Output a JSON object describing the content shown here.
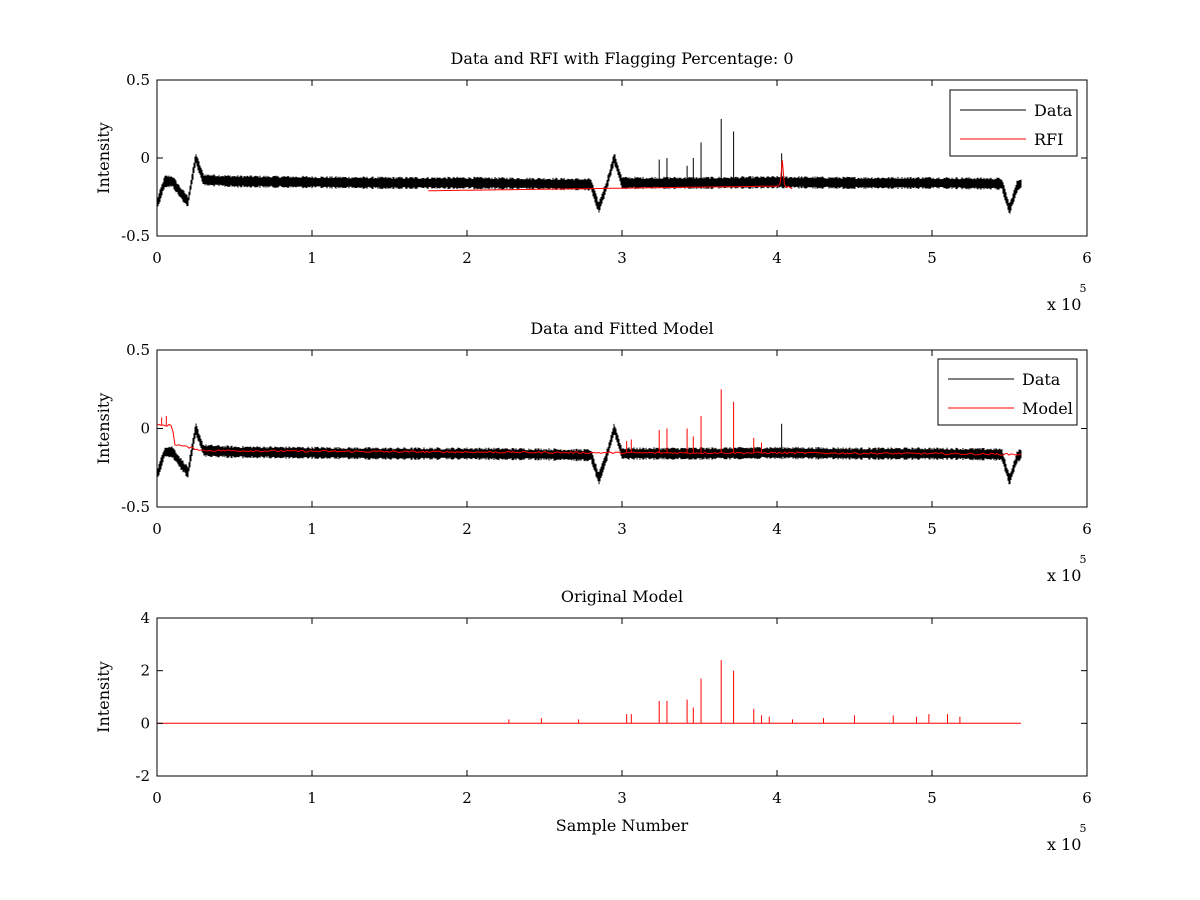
{
  "chart_data": [
    {
      "type": "line",
      "title": "Data and RFI with Flagging Percentage: 0",
      "xlabel": "",
      "ylabel": "Intensity",
      "xlim": [
        0,
        600000
      ],
      "ylim": [
        -0.5,
        0.5
      ],
      "xticks": [
        0,
        1,
        2,
        3,
        4,
        5,
        6
      ],
      "yticks": [
        "-0.5",
        "0",
        "0.5"
      ],
      "x_multiplier": "x 10",
      "x_exponent": "5",
      "legend_position": "top-right",
      "series": [
        {
          "name": "Data",
          "color": "#000000",
          "x": [
            0,
            5000,
            10000,
            15000,
            20000,
            25000,
            30000,
            50000,
            100000,
            150000,
            200000,
            250000,
            280000,
            285000,
            290000,
            295000,
            300000,
            350000,
            400000,
            450000,
            500000,
            545000,
            550000,
            555000,
            558000
          ],
          "y": [
            -0.3,
            -0.15,
            -0.15,
            -0.22,
            -0.28,
            0.0,
            -0.14,
            -0.15,
            -0.155,
            -0.16,
            -0.16,
            -0.165,
            -0.17,
            -0.32,
            -0.18,
            0.0,
            -0.16,
            -0.16,
            -0.155,
            -0.16,
            -0.16,
            -0.165,
            -0.33,
            -0.18,
            -0.16
          ],
          "spikes": [
            {
              "x": 324000,
              "y": -0.01
            },
            {
              "x": 329000,
              "y": 0.0
            },
            {
              "x": 342000,
              "y": -0.05
            },
            {
              "x": 346000,
              "y": 0.0
            },
            {
              "x": 351000,
              "y": 0.1
            },
            {
              "x": 364000,
              "y": 0.25
            },
            {
              "x": 372000,
              "y": 0.17
            },
            {
              "x": 403000,
              "y": 0.03
            }
          ]
        },
        {
          "name": "RFI",
          "color": "#ff0000",
          "x": [
            175000,
            402000,
            403000,
            405000,
            407000,
            410000
          ],
          "y": [
            -0.21,
            -0.18,
            0.03,
            -0.2,
            -0.18,
            -0.2
          ]
        }
      ]
    },
    {
      "type": "line",
      "title": "Data and Fitted Model",
      "xlabel": "",
      "ylabel": "Intensity",
      "xlim": [
        0,
        600000
      ],
      "ylim": [
        -0.5,
        0.5
      ],
      "xticks": [
        0,
        1,
        2,
        3,
        4,
        5,
        6
      ],
      "yticks": [
        "-0.5",
        "0",
        "0.5"
      ],
      "x_multiplier": "x 10",
      "x_exponent": "5",
      "legend_position": "top-right",
      "series": [
        {
          "name": "Data",
          "color": "#000000",
          "x": [
            0,
            5000,
            10000,
            15000,
            20000,
            25000,
            30000,
            50000,
            100000,
            150000,
            200000,
            250000,
            280000,
            285000,
            290000,
            295000,
            300000,
            350000,
            400000,
            450000,
            500000,
            545000,
            550000,
            555000,
            558000
          ],
          "y": [
            -0.3,
            -0.15,
            -0.15,
            -0.22,
            -0.28,
            0.0,
            -0.14,
            -0.15,
            -0.155,
            -0.16,
            -0.16,
            -0.165,
            -0.17,
            -0.32,
            -0.18,
            0.0,
            -0.16,
            -0.16,
            -0.155,
            -0.16,
            -0.16,
            -0.165,
            -0.33,
            -0.18,
            -0.16
          ],
          "spikes": [
            {
              "x": 403000,
              "y": 0.03
            }
          ]
        },
        {
          "name": "Model",
          "color": "#ff0000",
          "x": [
            0,
            10000,
            11000,
            30000,
            100000,
            200000,
            300000,
            400000,
            500000,
            558000
          ],
          "y": [
            0.02,
            0.02,
            -0.1,
            -0.14,
            -0.145,
            -0.15,
            -0.155,
            -0.155,
            -0.16,
            -0.165
          ],
          "spikes": [
            {
              "x": 3000,
              "y": 0.07
            },
            {
              "x": 6000,
              "y": 0.08
            },
            {
              "x": 303000,
              "y": -0.08
            },
            {
              "x": 306000,
              "y": -0.07
            },
            {
              "x": 324000,
              "y": -0.01
            },
            {
              "x": 329000,
              "y": 0.0
            },
            {
              "x": 342000,
              "y": 0.0
            },
            {
              "x": 346000,
              "y": -0.05
            },
            {
              "x": 351000,
              "y": 0.08
            },
            {
              "x": 364000,
              "y": 0.25
            },
            {
              "x": 372000,
              "y": 0.17
            },
            {
              "x": 385000,
              "y": -0.06
            },
            {
              "x": 390000,
              "y": -0.09
            }
          ]
        }
      ]
    },
    {
      "type": "line",
      "title": "Original Model",
      "xlabel": "Sample Number",
      "ylabel": "Intensity",
      "xlim": [
        0,
        600000
      ],
      "ylim": [
        -2,
        4
      ],
      "xticks": [
        0,
        1,
        2,
        3,
        4,
        5,
        6
      ],
      "yticks": [
        "-2",
        "0",
        "2",
        "4"
      ],
      "x_multiplier": "x 10",
      "x_exponent": "5",
      "series": [
        {
          "name": "Original Model",
          "color": "#ff0000",
          "x": [
            0,
            558000
          ],
          "y": [
            0,
            0
          ],
          "spikes": [
            {
              "x": 227000,
              "y": 0.15
            },
            {
              "x": 248000,
              "y": 0.2
            },
            {
              "x": 272000,
              "y": 0.15
            },
            {
              "x": 303000,
              "y": 0.35
            },
            {
              "x": 306000,
              "y": 0.35
            },
            {
              "x": 324000,
              "y": 0.85
            },
            {
              "x": 329000,
              "y": 0.85
            },
            {
              "x": 342000,
              "y": 0.9
            },
            {
              "x": 346000,
              "y": 0.6
            },
            {
              "x": 351000,
              "y": 1.7
            },
            {
              "x": 364000,
              "y": 2.4
            },
            {
              "x": 372000,
              "y": 2.0
            },
            {
              "x": 385000,
              "y": 0.55
            },
            {
              "x": 390000,
              "y": 0.3
            },
            {
              "x": 395000,
              "y": 0.25
            },
            {
              "x": 410000,
              "y": 0.15
            },
            {
              "x": 430000,
              "y": 0.2
            },
            {
              "x": 450000,
              "y": 0.3
            },
            {
              "x": 475000,
              "y": 0.3
            },
            {
              "x": 490000,
              "y": 0.25
            },
            {
              "x": 498000,
              "y": 0.35
            },
            {
              "x": 510000,
              "y": 0.35
            },
            {
              "x": 518000,
              "y": 0.25
            }
          ]
        }
      ]
    }
  ]
}
